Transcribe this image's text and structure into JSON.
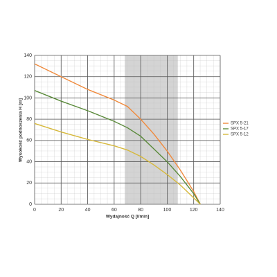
{
  "chart_data": {
    "type": "line",
    "x_label": "Wydajność Q [l/min]",
    "y_label": "Wysokość podnoszenia H [m]",
    "x": [
      0,
      20,
      40,
      60,
      70,
      80,
      90,
      100,
      110,
      120,
      125
    ],
    "series": [
      {
        "name": "SPX 5-21",
        "color": "#f08a3c",
        "values": [
          132,
          120,
          108,
          98,
          92,
          80,
          66,
          50,
          32,
          12,
          0
        ]
      },
      {
        "name": "SPX 5-17",
        "color": "#5a8a3a",
        "values": [
          107,
          97,
          88,
          78,
          72,
          64,
          52,
          40,
          26,
          10,
          0
        ]
      },
      {
        "name": "SPX 5-12",
        "color": "#d6b83a",
        "values": [
          76,
          68,
          61,
          55,
          51,
          45,
          37,
          28,
          18,
          6,
          0
        ]
      }
    ],
    "shaded_range": [
      68,
      108
    ],
    "xlim": [
      0,
      140
    ],
    "xticks": [
      0,
      20,
      40,
      60,
      80,
      100,
      120,
      140
    ],
    "ylim": [
      0,
      140
    ],
    "yticks": [
      0,
      20,
      40,
      60,
      80,
      100,
      120,
      140
    ],
    "grid": true,
    "legend": "right"
  }
}
